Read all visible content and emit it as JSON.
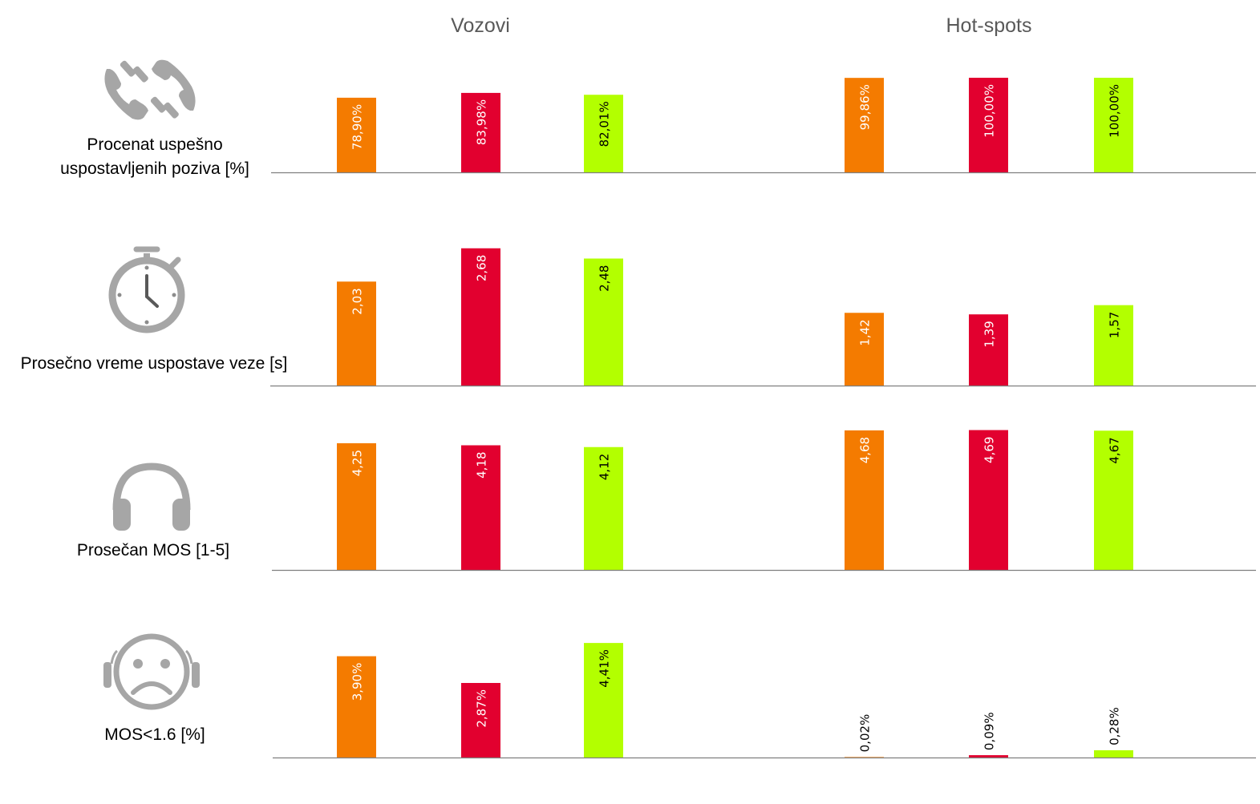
{
  "groups": [
    "Vozovi",
    "Hot-spots"
  ],
  "colors": [
    "#F47B00",
    "#E2002F",
    "#B3FF00"
  ],
  "rows": [
    {
      "label_line1": "Procenat uspešno",
      "label_line2": "uspostavljenih poziva [%]",
      "icon": "phone-calls-icon",
      "values": [
        [
          78.9,
          83.98,
          82.01
        ],
        [
          99.86,
          100.0,
          100.0
        ]
      ],
      "labels": [
        [
          "78,90%",
          "83,98%",
          "82,01%"
        ],
        [
          "99,86%",
          "100,00%",
          "100,00%"
        ]
      ],
      "ylim": [
        0,
        100
      ]
    },
    {
      "label_line1": "Prosečno vreme uspostave veze [s]",
      "label_line2": "",
      "icon": "stopwatch-icon",
      "values": [
        [
          2.03,
          2.68,
          2.48
        ],
        [
          1.42,
          1.39,
          1.57
        ]
      ],
      "labels": [
        [
          "2,03",
          "2,68",
          "2,48"
        ],
        [
          "1,42",
          "1,39",
          "1,57"
        ]
      ],
      "ylim": [
        0,
        3
      ]
    },
    {
      "label_line1": "Prosečan MOS [1-5]",
      "label_line2": "",
      "icon": "headphones-icon",
      "values": [
        [
          4.25,
          4.18,
          4.12
        ],
        [
          4.68,
          4.69,
          4.67
        ]
      ],
      "labels": [
        [
          "4,25",
          "4,18",
          "4,12"
        ],
        [
          "4,68",
          "4,69",
          "4,67"
        ]
      ],
      "ylim": [
        0,
        5
      ]
    },
    {
      "label_line1": "MOS<1.6 [%]",
      "label_line2": "",
      "icon": "sad-face-headphones-icon",
      "values": [
        [
          3.9,
          2.87,
          4.41
        ],
        [
          0.02,
          0.09,
          0.28
        ]
      ],
      "labels": [
        [
          "3,90%",
          "2,87%",
          "4,41%"
        ],
        [
          "0,02%",
          "0,09%",
          "0,28%"
        ]
      ],
      "ylim": [
        0,
        5
      ]
    }
  ],
  "chart_data": {
    "type": "bar",
    "title": "",
    "groups": [
      "Vozovi",
      "Hot-spots"
    ],
    "panels": [
      {
        "ylabel": "Procenat uspešno uspostavljenih poziva [%]",
        "series": [
          {
            "values": [
              78.9,
              99.86
            ]
          },
          {
            "values": [
              83.98,
              100.0
            ]
          },
          {
            "values": [
              82.01,
              100.0
            ]
          }
        ]
      },
      {
        "ylabel": "Prosečno vreme uspostave veze [s]",
        "series": [
          {
            "values": [
              2.03,
              1.42
            ]
          },
          {
            "values": [
              2.68,
              1.39
            ]
          },
          {
            "values": [
              2.48,
              1.57
            ]
          }
        ]
      },
      {
        "ylabel": "Prosečan MOS [1-5]",
        "series": [
          {
            "values": [
              4.25,
              4.68
            ]
          },
          {
            "values": [
              4.18,
              4.69
            ]
          },
          {
            "values": [
              4.12,
              4.67
            ]
          }
        ]
      },
      {
        "ylabel": "MOS<1.6 [%]",
        "series": [
          {
            "values": [
              3.9,
              0.02
            ]
          },
          {
            "values": [
              2.87,
              0.09
            ]
          },
          {
            "values": [
              4.41,
              0.28
            ]
          }
        ]
      }
    ],
    "series_colors": [
      "#F47B00",
      "#E2002F",
      "#B3FF00"
    ],
    "legend": "none"
  }
}
